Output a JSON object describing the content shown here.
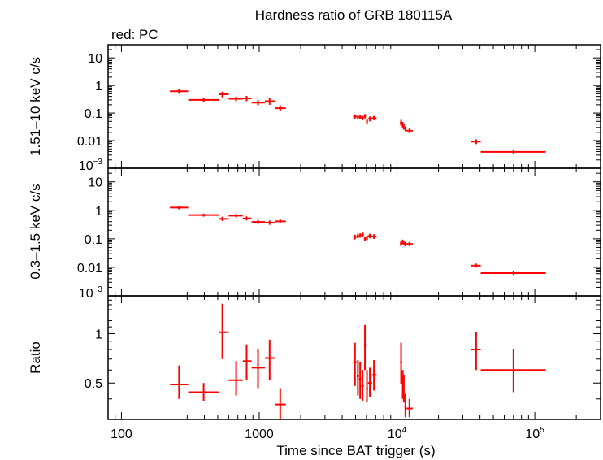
{
  "title": "Hardness ratio of GRB 180115A",
  "subtitle": "red: PC",
  "xlabel": "Time since BAT trigger (s)",
  "colors": {
    "data": "#ff0000",
    "axes": "#000000",
    "background": "#ffffff"
  },
  "x_ticks": [
    {
      "value": 100,
      "label": "100"
    },
    {
      "value": 1000,
      "label": "1000"
    },
    {
      "value": 10000,
      "label": "10",
      "exp": "4"
    },
    {
      "value": 100000,
      "label": "10",
      "exp": "5"
    }
  ],
  "chart_data": [
    {
      "type": "scatter",
      "panel": "hard",
      "ylabel": "1.51–10 keV c/s",
      "xscale": "log",
      "yscale": "log",
      "xlim": [
        80,
        300000
      ],
      "ylim": [
        0.001,
        30
      ],
      "y_ticks": [
        {
          "value": 10,
          "label": "10"
        },
        {
          "value": 1,
          "label": "1"
        },
        {
          "value": 0.1,
          "label": "0.1"
        },
        {
          "value": 0.01,
          "label": "0.01"
        },
        {
          "value": 0.001,
          "label": "10",
          "exp": "−3"
        }
      ],
      "points": [
        {
          "x": 262,
          "xerr": [
            225,
            305
          ],
          "y": 0.62,
          "yerr": [
            0.5,
            0.75
          ]
        },
        {
          "x": 395,
          "xerr": [
            305,
            510
          ],
          "y": 0.3,
          "yerr": [
            0.25,
            0.36
          ]
        },
        {
          "x": 540,
          "xerr": [
            510,
            600
          ],
          "y": 0.48,
          "yerr": [
            0.37,
            0.6
          ]
        },
        {
          "x": 680,
          "xerr": [
            600,
            760
          ],
          "y": 0.33,
          "yerr": [
            0.27,
            0.4
          ]
        },
        {
          "x": 810,
          "xerr": [
            760,
            880
          ],
          "y": 0.34,
          "yerr": [
            0.27,
            0.42
          ]
        },
        {
          "x": 980,
          "xerr": [
            880,
            1100
          ],
          "y": 0.24,
          "yerr": [
            0.19,
            0.3
          ]
        },
        {
          "x": 1190,
          "xerr": [
            1100,
            1300
          ],
          "y": 0.27,
          "yerr": [
            0.2,
            0.35
          ]
        },
        {
          "x": 1420,
          "xerr": [
            1300,
            1560
          ],
          "y": 0.15,
          "yerr": [
            0.12,
            0.19
          ]
        },
        {
          "x": 4950,
          "xerr": [
            4800,
            5100
          ],
          "y": 0.075,
          "yerr": [
            0.06,
            0.09
          ]
        },
        {
          "x": 5200,
          "xerr": [
            5100,
            5300
          ],
          "y": 0.07,
          "yerr": [
            0.058,
            0.084
          ]
        },
        {
          "x": 5400,
          "xerr": [
            5300,
            5500
          ],
          "y": 0.072,
          "yerr": [
            0.06,
            0.086
          ]
        },
        {
          "x": 5620,
          "xerr": [
            5500,
            5750
          ],
          "y": 0.066,
          "yerr": [
            0.055,
            0.079
          ]
        },
        {
          "x": 5850,
          "xerr": [
            5750,
            5960
          ],
          "y": 0.077,
          "yerr": [
            0.064,
            0.092
          ]
        },
        {
          "x": 6050,
          "xerr": [
            5960,
            6150
          ],
          "y": 0.05,
          "yerr": [
            0.04,
            0.062
          ]
        },
        {
          "x": 6350,
          "xerr": [
            6150,
            6600
          ],
          "y": 0.062,
          "yerr": [
            0.05,
            0.075
          ]
        },
        {
          "x": 6800,
          "xerr": [
            6600,
            7100
          ],
          "y": 0.066,
          "yerr": [
            0.055,
            0.079
          ]
        },
        {
          "x": 10700,
          "xerr": [
            10500,
            10900
          ],
          "y": 0.045,
          "yerr": [
            0.035,
            0.057
          ]
        },
        {
          "x": 11000,
          "xerr": [
            10900,
            11100
          ],
          "y": 0.038,
          "yerr": [
            0.03,
            0.048
          ]
        },
        {
          "x": 11200,
          "xerr": [
            11100,
            11300
          ],
          "y": 0.032,
          "yerr": [
            0.025,
            0.04
          ]
        },
        {
          "x": 11500,
          "xerr": [
            11300,
            11700
          ],
          "y": 0.027,
          "yerr": [
            0.022,
            0.033
          ]
        },
        {
          "x": 12300,
          "xerr": [
            11700,
            13000
          ],
          "y": 0.023,
          "yerr": [
            0.019,
            0.028
          ]
        },
        {
          "x": 37500,
          "xerr": [
            34500,
            40500
          ],
          "y": 0.0092,
          "yerr": [
            0.0075,
            0.0112
          ]
        },
        {
          "x": 70000,
          "xerr": [
            40500,
            120000
          ],
          "y": 0.0039,
          "yerr": [
            0.0032,
            0.0048
          ]
        }
      ]
    },
    {
      "type": "scatter",
      "panel": "soft",
      "ylabel": "0.3–1.5 keV c/s",
      "xscale": "log",
      "yscale": "log",
      "xlim": [
        80,
        300000
      ],
      "ylim": [
        0.001,
        30
      ],
      "y_ticks": [
        {
          "value": 10,
          "label": "10"
        },
        {
          "value": 1,
          "label": "1"
        },
        {
          "value": 0.1,
          "label": "0.1"
        },
        {
          "value": 0.01,
          "label": "0.01"
        },
        {
          "value": 0.001,
          "label": "10",
          "exp": "−3"
        }
      ],
      "points": [
        {
          "x": 262,
          "xerr": [
            225,
            305
          ],
          "y": 1.25,
          "yerr": [
            1.08,
            1.45
          ]
        },
        {
          "x": 395,
          "xerr": [
            305,
            510
          ],
          "y": 0.68,
          "yerr": [
            0.6,
            0.77
          ]
        },
        {
          "x": 540,
          "xerr": [
            510,
            600
          ],
          "y": 0.5,
          "yerr": [
            0.42,
            0.6
          ]
        },
        {
          "x": 680,
          "xerr": [
            600,
            760
          ],
          "y": 0.65,
          "yerr": [
            0.56,
            0.75
          ]
        },
        {
          "x": 810,
          "xerr": [
            760,
            880
          ],
          "y": 0.52,
          "yerr": [
            0.44,
            0.61
          ]
        },
        {
          "x": 980,
          "xerr": [
            880,
            1100
          ],
          "y": 0.39,
          "yerr": [
            0.33,
            0.46
          ]
        },
        {
          "x": 1190,
          "xerr": [
            1100,
            1300
          ],
          "y": 0.37,
          "yerr": [
            0.31,
            0.44
          ]
        },
        {
          "x": 1420,
          "xerr": [
            1300,
            1560
          ],
          "y": 0.41,
          "yerr": [
            0.35,
            0.48
          ]
        },
        {
          "x": 4950,
          "xerr": [
            4800,
            5100
          ],
          "y": 0.115,
          "yerr": [
            0.095,
            0.14
          ]
        },
        {
          "x": 5200,
          "xerr": [
            5100,
            5300
          ],
          "y": 0.125,
          "yerr": [
            0.105,
            0.15
          ]
        },
        {
          "x": 5400,
          "xerr": [
            5300,
            5500
          ],
          "y": 0.13,
          "yerr": [
            0.11,
            0.155
          ]
        },
        {
          "x": 5620,
          "xerr": [
            5500,
            5750
          ],
          "y": 0.14,
          "yerr": [
            0.118,
            0.165
          ]
        },
        {
          "x": 5850,
          "xerr": [
            5750,
            5960
          ],
          "y": 0.1,
          "yerr": [
            0.082,
            0.12
          ]
        },
        {
          "x": 6050,
          "xerr": [
            5960,
            6150
          ],
          "y": 0.11,
          "yerr": [
            0.09,
            0.13
          ]
        },
        {
          "x": 6350,
          "xerr": [
            6150,
            6600
          ],
          "y": 0.125,
          "yerr": [
            0.105,
            0.15
          ]
        },
        {
          "x": 6800,
          "xerr": [
            6600,
            7100
          ],
          "y": 0.12,
          "yerr": [
            0.1,
            0.145
          ]
        },
        {
          "x": 10700,
          "xerr": [
            10500,
            10900
          ],
          "y": 0.068,
          "yerr": [
            0.056,
            0.082
          ]
        },
        {
          "x": 11000,
          "xerr": [
            10900,
            11100
          ],
          "y": 0.078,
          "yerr": [
            0.065,
            0.094
          ]
        },
        {
          "x": 11200,
          "xerr": [
            11100,
            11300
          ],
          "y": 0.07,
          "yerr": [
            0.058,
            0.084
          ]
        },
        {
          "x": 11500,
          "xerr": [
            11300,
            11700
          ],
          "y": 0.065,
          "yerr": [
            0.054,
            0.078
          ]
        },
        {
          "x": 12300,
          "xerr": [
            11700,
            13000
          ],
          "y": 0.066,
          "yerr": [
            0.056,
            0.078
          ]
        },
        {
          "x": 37500,
          "xerr": [
            34500,
            40500
          ],
          "y": 0.0115,
          "yerr": [
            0.0098,
            0.0135
          ]
        },
        {
          "x": 70000,
          "xerr": [
            40500,
            120000
          ],
          "y": 0.0063,
          "yerr": [
            0.0054,
            0.0074
          ]
        }
      ]
    },
    {
      "type": "scatter",
      "panel": "ratio",
      "ylabel": "Ratio",
      "xscale": "log",
      "yscale": "log",
      "xlim": [
        80,
        300000
      ],
      "ylim": [
        0.3,
        1.7
      ],
      "y_ticks": [
        {
          "value": 1,
          "label": "1"
        },
        {
          "value": 0.5,
          "label": "0.5"
        }
      ],
      "points": [
        {
          "x": 262,
          "xerr": [
            225,
            305
          ],
          "y": 0.49,
          "yerr": [
            0.4,
            0.64
          ]
        },
        {
          "x": 395,
          "xerr": [
            305,
            510
          ],
          "y": 0.44,
          "yerr": [
            0.39,
            0.5
          ]
        },
        {
          "x": 540,
          "xerr": [
            510,
            600
          ],
          "y": 1.02,
          "yerr": [
            0.7,
            1.52
          ]
        },
        {
          "x": 680,
          "xerr": [
            600,
            760
          ],
          "y": 0.52,
          "yerr": [
            0.42,
            0.68
          ]
        },
        {
          "x": 810,
          "xerr": [
            760,
            880
          ],
          "y": 0.68,
          "yerr": [
            0.52,
            0.86
          ]
        },
        {
          "x": 980,
          "xerr": [
            880,
            1100
          ],
          "y": 0.62,
          "yerr": [
            0.46,
            0.8
          ]
        },
        {
          "x": 1190,
          "xerr": [
            1100,
            1300
          ],
          "y": 0.71,
          "yerr": [
            0.52,
            0.92
          ]
        },
        {
          "x": 1420,
          "xerr": [
            1300,
            1560
          ],
          "y": 0.37,
          "yerr": [
            0.3,
            0.46
          ]
        },
        {
          "x": 4950,
          "xerr": [
            4800,
            5100
          ],
          "y": 0.67,
          "yerr": [
            0.48,
            0.88
          ]
        },
        {
          "x": 5200,
          "xerr": [
            5100,
            5300
          ],
          "y": 0.55,
          "yerr": [
            0.42,
            0.69
          ]
        },
        {
          "x": 5400,
          "xerr": [
            5300,
            5500
          ],
          "y": 0.53,
          "yerr": [
            0.4,
            0.67
          ]
        },
        {
          "x": 5620,
          "xerr": [
            5500,
            5750
          ],
          "y": 0.48,
          "yerr": [
            0.39,
            0.6
          ]
        },
        {
          "x": 5850,
          "xerr": [
            5750,
            5960
          ],
          "y": 0.85,
          "yerr": [
            0.6,
            1.13
          ]
        },
        {
          "x": 6050,
          "xerr": [
            5960,
            6150
          ],
          "y": 0.46,
          "yerr": [
            0.38,
            0.6
          ]
        },
        {
          "x": 6350,
          "xerr": [
            6150,
            6600
          ],
          "y": 0.5,
          "yerr": [
            0.41,
            0.62
          ]
        },
        {
          "x": 6800,
          "xerr": [
            6600,
            7100
          ],
          "y": 0.56,
          "yerr": [
            0.45,
            0.69
          ]
        },
        {
          "x": 10700,
          "xerr": [
            10500,
            10900
          ],
          "y": 0.67,
          "yerr": [
            0.49,
            0.88
          ]
        },
        {
          "x": 11000,
          "xerr": [
            10900,
            11100
          ],
          "y": 0.49,
          "yerr": [
            0.4,
            0.6
          ]
        },
        {
          "x": 11200,
          "xerr": [
            11100,
            11300
          ],
          "y": 0.46,
          "yerr": [
            0.38,
            0.56
          ]
        },
        {
          "x": 11500,
          "xerr": [
            11300,
            11700
          ],
          "y": 0.36,
          "yerr": [
            0.31,
            0.43
          ]
        },
        {
          "x": 12300,
          "xerr": [
            11700,
            13000
          ],
          "y": 0.35,
          "yerr": [
            0.31,
            0.4
          ]
        },
        {
          "x": 37500,
          "xerr": [
            34500,
            40500
          ],
          "y": 0.8,
          "yerr": [
            0.6,
            1.02
          ]
        },
        {
          "x": 70000,
          "xerr": [
            40500,
            120000
          ],
          "y": 0.6,
          "yerr": [
            0.44,
            0.8
          ]
        }
      ]
    }
  ]
}
